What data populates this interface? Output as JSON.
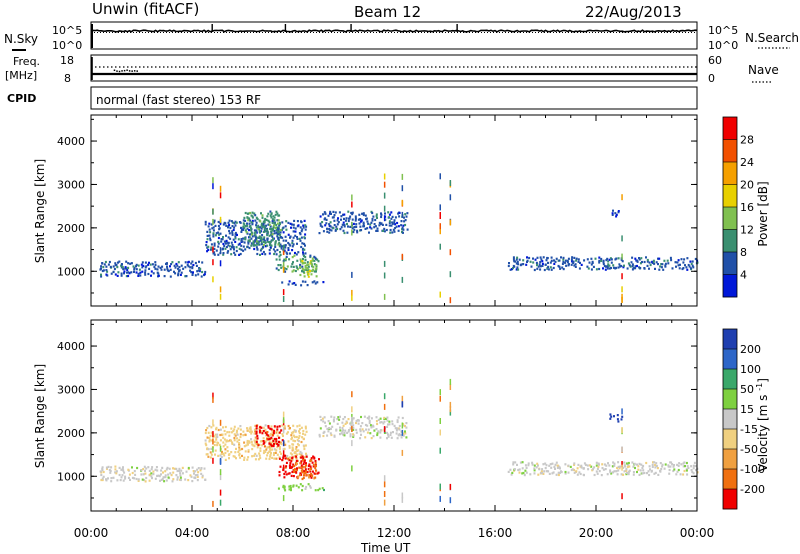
{
  "header": {
    "radar": "Unwin (fitACF)",
    "beam": "Beam 12",
    "date": "22/Aug/2013"
  },
  "noise_panel": {
    "left_label": "N.Sky",
    "right_label": "N.Search",
    "ticks_left": [
      "10^5",
      "10^0"
    ],
    "ticks_right": [
      "10^5",
      "10^0"
    ]
  },
  "freq_panel": {
    "left_label_1": "Freq.",
    "left_label_2": "[MHz]",
    "right_label": "Nave",
    "ticks_left": [
      "18",
      "8"
    ],
    "ticks_right": [
      "60",
      "0"
    ]
  },
  "cpid_panel": {
    "label": "CPID",
    "mode": "normal (fast stereo) 153 RF"
  },
  "chart_data": [
    {
      "type": "heatmap",
      "title": "",
      "xlabel": "",
      "ylabel": "Slant Range [km]",
      "yticks": [
        "1000",
        "2000",
        "3000",
        "4000"
      ],
      "ylim": [
        200,
        4600
      ],
      "xlim_hours": [
        0,
        24
      ],
      "colorbar": {
        "label": "Power [dB]",
        "ticks": [
          "28",
          "24",
          "20",
          "16",
          "12",
          "8",
          "4"
        ],
        "colors": [
          "#f00000",
          "#f25000",
          "#f5a000",
          "#e8d000",
          "#80c050",
          "#3a8f70",
          "#2050a8",
          "#0018d8"
        ]
      },
      "series": [
        {
          "hours": [
            0.3,
            4.5
          ],
          "range": [
            900,
            1250
          ],
          "level": 1
        },
        {
          "hours": [
            4.5,
            8.5
          ],
          "range": [
            1400,
            2200
          ],
          "level": 1
        },
        {
          "hours": [
            6.0,
            7.5
          ],
          "range": [
            1600,
            2400
          ],
          "level": 2
        },
        {
          "hours": [
            7.3,
            9.0
          ],
          "range": [
            1000,
            1400
          ],
          "level": 2
        },
        {
          "hours": [
            8.2,
            8.9
          ],
          "range": [
            900,
            1300
          ],
          "level": 3
        },
        {
          "hours": [
            8.4,
            8.8
          ],
          "range": [
            950,
            1100
          ],
          "level": 4
        },
        {
          "hours": [
            7.4,
            9.2
          ],
          "range": [
            700,
            800
          ],
          "level": 1
        },
        {
          "hours": [
            9.0,
            12.5
          ],
          "range": [
            1900,
            2400
          ],
          "level": 1
        },
        {
          "hours": [
            16.5,
            24.0
          ],
          "range": [
            1050,
            1350
          ],
          "level": 1
        },
        {
          "hours": [
            20.5,
            21.0
          ],
          "range": [
            2250,
            2450
          ],
          "level": 1
        }
      ]
    },
    {
      "type": "heatmap",
      "title": "",
      "xlabel": "Time UT",
      "ylabel": "Slant Range [km]",
      "yticks": [
        "1000",
        "2000",
        "3000",
        "4000"
      ],
      "xticks": [
        "00:00",
        "04:00",
        "08:00",
        "12:00",
        "16:00",
        "20:00",
        "00:00"
      ],
      "ylim": [
        200,
        4600
      ],
      "xlim_hours": [
        0,
        24
      ],
      "colorbar": {
        "label": "Velocity [m s-1]",
        "ticks": [
          "200",
          "100",
          "50",
          "15",
          "-15",
          "-50",
          "-100",
          "-200"
        ],
        "colors": [
          "#1f3fb0",
          "#2d66c8",
          "#3aa86a",
          "#7ed040",
          "#c8c8c8",
          "#f0d080",
          "#f0a040",
          "#f07010",
          "#f00000"
        ]
      },
      "series": [
        {
          "hours": [
            0.3,
            4.5
          ],
          "range": [
            900,
            1250
          ],
          "level": 4
        },
        {
          "hours": [
            4.5,
            8.5
          ],
          "range": [
            1400,
            2200
          ],
          "level": 5
        },
        {
          "hours": [
            6.5,
            7.6
          ],
          "range": [
            1700,
            2200
          ],
          "level": 8
        },
        {
          "hours": [
            7.4,
            9.0
          ],
          "range": [
            1000,
            1500
          ],
          "level": 8
        },
        {
          "hours": [
            8.0,
            8.9
          ],
          "range": [
            950,
            1400
          ],
          "level": 7
        },
        {
          "hours": [
            7.4,
            9.2
          ],
          "range": [
            700,
            850
          ],
          "level": 3
        },
        {
          "hours": [
            9.0,
            12.5
          ],
          "range": [
            1900,
            2400
          ],
          "level": 4
        },
        {
          "hours": [
            16.5,
            24.0
          ],
          "range": [
            1050,
            1350
          ],
          "level": 4
        },
        {
          "hours": [
            20.5,
            21.0
          ],
          "range": [
            2250,
            2450
          ],
          "level": 0
        }
      ]
    }
  ],
  "velocity_superscript": "-1"
}
